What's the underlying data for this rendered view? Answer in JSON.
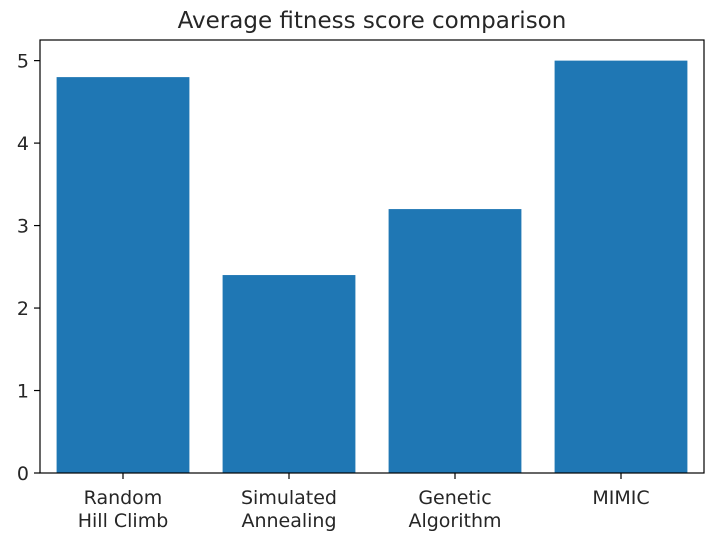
{
  "chart_data": {
    "type": "bar",
    "title": "Average fitness score comparison",
    "categories": [
      [
        "Random",
        "Hill Climb"
      ],
      [
        "Simulated",
        "Annealing"
      ],
      [
        "Genetic",
        "Algorithm"
      ],
      [
        "MIMIC"
      ]
    ],
    "values": [
      4.8,
      2.4,
      3.2,
      5.0
    ],
    "xlabel": "",
    "ylabel": "",
    "ylim": [
      0,
      5.25
    ],
    "yticks": [
      0,
      1,
      2,
      3,
      4,
      5
    ],
    "grid": false,
    "legend": "none",
    "bar_color": "#1f77b4"
  }
}
